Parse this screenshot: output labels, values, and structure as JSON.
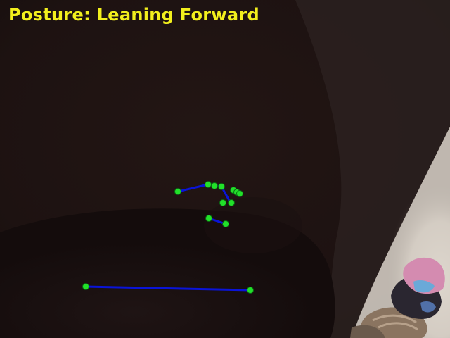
{
  "status": {
    "posture_text": "Posture: Leaning Forward"
  },
  "colors": {
    "label_text": "#f2ef1d",
    "skeleton_line": "#0a14d8",
    "keypoint_fill": "#22e02a",
    "keypoint_outline": "#0b6a14",
    "scene_dark": "#1b1110",
    "scene_light_wall": "#d6cfc4"
  },
  "pose": {
    "keypoints_visible": 15,
    "segments_visible": 7
  }
}
